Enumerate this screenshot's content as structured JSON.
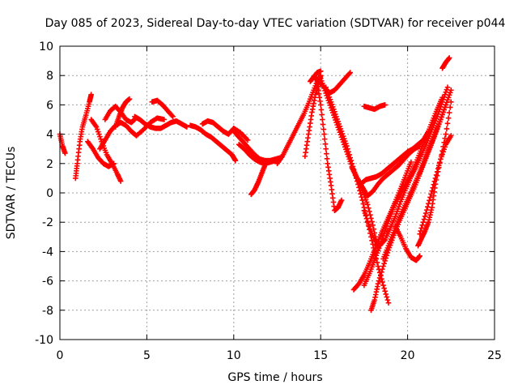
{
  "chart_data": {
    "type": "scatter",
    "title": "Day 085 of 2023, Sidereal Day-to-day VTEC variation (SDTVAR) for receiver p044",
    "xlabel": "GPS time / hours",
    "ylabel": "SDTVAR / TECUs",
    "xlim": [
      0,
      25
    ],
    "ylim": [
      -10,
      10
    ],
    "xticks": [
      0,
      5,
      10,
      15,
      20,
      25
    ],
    "yticks": [
      -10,
      -8,
      -6,
      -4,
      -2,
      0,
      2,
      4,
      6,
      8,
      10
    ],
    "grid": true,
    "marker": "+",
    "color": "#ff0000",
    "series": [
      {
        "x": [
          0.0,
          0.15,
          0.3
        ],
        "y": [
          4.0,
          3.2,
          2.7
        ]
      },
      {
        "x": [
          0.9,
          1.0,
          1.15,
          1.3,
          1.5,
          1.7,
          1.8
        ],
        "y": [
          1.0,
          2.0,
          3.5,
          4.5,
          5.3,
          6.2,
          6.7
        ]
      },
      {
        "x": [
          1.8,
          2.1,
          2.4,
          2.7,
          3.0,
          3.3,
          3.5
        ],
        "y": [
          5.0,
          4.5,
          3.5,
          2.6,
          2.0,
          1.3,
          0.8
        ]
      },
      {
        "x": [
          1.6,
          1.9,
          2.2,
          2.5,
          2.8,
          3.1
        ],
        "y": [
          3.5,
          3.0,
          2.4,
          2.0,
          1.8,
          2.0
        ]
      },
      {
        "x": [
          2.3,
          2.6,
          2.9,
          3.2,
          3.5,
          3.8,
          4.1,
          4.4,
          4.8,
          5.2,
          5.6,
          6.0
        ],
        "y": [
          3.0,
          3.6,
          4.2,
          4.6,
          4.8,
          4.6,
          4.2,
          3.9,
          4.3,
          4.8,
          5.1,
          5.0
        ]
      },
      {
        "x": [
          2.6,
          2.9,
          3.2,
          3.5,
          3.8,
          4.1,
          4.3
        ],
        "y": [
          5.0,
          5.6,
          5.9,
          5.5,
          5.0,
          4.8,
          5.0
        ]
      },
      {
        "x": [
          3.2,
          3.4,
          3.6,
          3.8,
          4.0
        ],
        "y": [
          4.5,
          5.2,
          5.8,
          6.2,
          6.4
        ]
      },
      {
        "x": [
          4.3,
          4.6,
          4.9,
          5.2,
          5.5,
          5.8,
          6.1,
          6.4,
          6.7,
          7.0,
          7.3
        ],
        "y": [
          5.2,
          5.0,
          4.7,
          4.5,
          4.4,
          4.4,
          4.6,
          4.8,
          4.9,
          4.7,
          4.5
        ]
      },
      {
        "x": [
          5.3,
          5.6,
          5.9,
          6.2,
          6.5
        ],
        "y": [
          6.2,
          6.3,
          6.0,
          5.6,
          5.2
        ]
      },
      {
        "x": [
          7.5,
          7.8,
          8.1,
          8.4,
          8.7,
          9.0,
          9.3,
          9.6,
          9.9,
          10.1
        ],
        "y": [
          4.6,
          4.5,
          4.3,
          4.0,
          3.8,
          3.5,
          3.2,
          2.9,
          2.6,
          2.2
        ]
      },
      {
        "x": [
          8.2,
          8.5,
          8.8,
          9.1,
          9.4,
          9.7,
          10.0,
          10.4,
          10.8
        ],
        "y": [
          4.7,
          4.9,
          4.8,
          4.5,
          4.2,
          4.0,
          4.4,
          4.1,
          3.6
        ]
      },
      {
        "x": [
          10.0,
          10.3,
          10.6,
          10.9,
          11.2,
          11.5,
          11.8,
          12.1,
          12.4,
          12.7
        ],
        "y": [
          4.2,
          3.8,
          3.4,
          3.0,
          2.6,
          2.3,
          2.2,
          2.2,
          2.3,
          2.4
        ]
      },
      {
        "x": [
          10.3,
          10.6,
          10.9,
          11.2,
          11.5,
          11.8,
          12.1,
          12.4
        ],
        "y": [
          3.3,
          3.0,
          2.6,
          2.3,
          2.1,
          2.0,
          2.1,
          2.2
        ]
      },
      {
        "x": [
          11.0,
          11.2,
          11.4,
          11.6,
          11.8
        ],
        "y": [
          -0.1,
          0.2,
          0.7,
          1.3,
          1.9
        ]
      },
      {
        "x": [
          12.5,
          12.8,
          13.1,
          13.4,
          13.7,
          14.0,
          14.3,
          14.6,
          14.9
        ],
        "y": [
          2.0,
          2.5,
          3.2,
          3.9,
          4.6,
          5.3,
          6.1,
          7.0,
          7.9
        ]
      },
      {
        "x": [
          14.1,
          14.3,
          14.5,
          14.7,
          14.9,
          15.0
        ],
        "y": [
          2.5,
          4.0,
          5.5,
          6.7,
          7.5,
          8.0
        ]
      },
      {
        "x": [
          14.4,
          14.6,
          14.8,
          15.0
        ],
        "y": [
          7.6,
          7.9,
          8.2,
          8.3
        ]
      },
      {
        "x": [
          14.6,
          14.9,
          15.2,
          15.5,
          15.8,
          16.1,
          16.4,
          16.7
        ],
        "y": [
          7.9,
          7.6,
          7.2,
          6.8,
          7.0,
          7.4,
          7.8,
          8.2
        ]
      },
      {
        "x": [
          14.8,
          15.0,
          15.2,
          15.4,
          15.6,
          15.8,
          16.0,
          16.2
        ],
        "y": [
          7.5,
          6.0,
          4.0,
          2.0,
          0.5,
          -1.2,
          -1.0,
          -0.5
        ]
      },
      {
        "x": [
          15.0,
          15.3,
          15.6,
          15.9,
          16.2,
          16.5,
          16.8,
          17.1,
          17.4,
          17.7,
          18.0,
          18.3
        ],
        "y": [
          7.8,
          6.8,
          5.8,
          4.8,
          3.8,
          2.8,
          1.8,
          1.0,
          0.2,
          -0.8,
          -2.2,
          -3.8
        ]
      },
      {
        "x": [
          15.3,
          15.6,
          15.9,
          16.2,
          16.5,
          16.8,
          17.1,
          17.4,
          17.7,
          18.0,
          18.3,
          18.6,
          18.9
        ],
        "y": [
          7.2,
          6.2,
          5.2,
          4.2,
          3.2,
          2.0,
          0.8,
          -0.5,
          -2.0,
          -3.5,
          -5.0,
          -6.3,
          -7.5
        ]
      },
      {
        "x": [
          16.8,
          17.1,
          17.4,
          17.7,
          18.0,
          18.3,
          18.6,
          18.9,
          19.2,
          19.5,
          19.8,
          20.1,
          20.4,
          20.7
        ],
        "y": [
          1.7,
          1.0,
          0.4,
          -0.2,
          0.1,
          0.6,
          1.0,
          1.3,
          1.6,
          1.9,
          2.3,
          2.7,
          3.0,
          3.2
        ]
      },
      {
        "x": [
          17.0,
          17.3,
          17.6,
          17.9,
          18.2,
          18.5,
          18.8,
          19.1,
          19.4,
          19.7,
          20.0,
          20.3,
          20.6,
          20.9,
          21.2
        ],
        "y": [
          1.2,
          0.6,
          0.9,
          1.0,
          1.1,
          1.3,
          1.6,
          1.9,
          2.2,
          2.5,
          2.8,
          3.0,
          3.3,
          3.6,
          4.2
        ]
      },
      {
        "x": [
          17.5,
          17.8,
          18.1,
          18.4,
          18.7,
          19.0,
          19.3,
          19.6,
          19.9,
          20.2,
          20.5,
          20.8,
          21.1,
          21.4,
          21.7,
          22.0,
          22.3
        ],
        "y": [
          -1.2,
          -2.3,
          -3.2,
          -3.6,
          -3.2,
          -2.4,
          -1.6,
          -0.6,
          0.3,
          1.1,
          1.8,
          2.6,
          3.4,
          4.3,
          5.2,
          6.2,
          7.2
        ]
      },
      {
        "x": [
          16.9,
          17.2,
          17.5,
          17.8,
          18.1,
          18.4,
          18.7,
          19.0,
          19.3,
          19.6,
          19.9,
          20.2
        ],
        "y": [
          -6.6,
          -6.2,
          -5.6,
          -4.8,
          -3.9,
          -3.0,
          -2.2,
          -1.4,
          -0.6,
          0.3,
          1.2,
          2.1
        ]
      },
      {
        "x": [
          17.5,
          17.8,
          18.1,
          18.4,
          18.7,
          19.0,
          19.3,
          19.6,
          19.9,
          20.2,
          20.5,
          20.8,
          21.1,
          21.4,
          21.7,
          22.0
        ],
        "y": [
          -6.3,
          -5.5,
          -4.6,
          -3.6,
          -2.6,
          -1.6,
          -0.7,
          0.0,
          0.6,
          1.3,
          2.1,
          3.0,
          3.9,
          4.8,
          5.7,
          6.5
        ]
      },
      {
        "x": [
          17.9,
          18.1,
          18.3,
          18.6,
          18.9,
          19.2,
          19.5,
          19.8,
          20.1,
          20.4,
          20.7,
          21.0,
          21.3,
          21.6,
          21.9,
          22.2
        ],
        "y": [
          -8.0,
          -7.3,
          -6.2,
          -5.0,
          -3.9,
          -2.9,
          -2.0,
          -1.2,
          -0.4,
          0.4,
          1.3,
          2.2,
          3.1,
          4.0,
          5.0,
          6.0
        ]
      },
      {
        "x": [
          18.6,
          18.9,
          19.2,
          19.5,
          19.8,
          20.1,
          20.4,
          20.7,
          21.0,
          21.3,
          21.6,
          21.9,
          22.2,
          22.5
        ],
        "y": [
          -4.5,
          -3.6,
          -2.7,
          -1.8,
          -1.0,
          -0.2,
          0.6,
          1.4,
          2.3,
          3.2,
          4.1,
          5.0,
          6.0,
          7.0
        ]
      },
      {
        "x": [
          19.3,
          19.6,
          19.9,
          20.2,
          20.5,
          20.7
        ],
        "y": [
          -2.3,
          -3.0,
          -3.8,
          -4.4,
          -4.6,
          -4.3
        ]
      },
      {
        "x": [
          20.7,
          21.0,
          21.3,
          21.6,
          21.9,
          22.2,
          22.5
        ],
        "y": [
          -2.8,
          -1.6,
          -0.3,
          1.0,
          2.3,
          3.3,
          3.9
        ]
      },
      {
        "x": [
          20.6,
          20.8,
          21.0,
          21.2,
          21.4,
          21.6,
          21.9,
          22.2,
          22.5
        ],
        "y": [
          -3.6,
          -3.1,
          -2.6,
          -2.0,
          -1.0,
          0.6,
          2.3,
          4.0,
          6.2
        ]
      },
      {
        "x": [
          17.5,
          17.8,
          18.1,
          18.4,
          18.7
        ],
        "y": [
          5.9,
          5.8,
          5.7,
          5.9,
          6.0
        ]
      },
      {
        "x": [
          22.0,
          22.2,
          22.4
        ],
        "y": [
          8.5,
          8.9,
          9.2
        ]
      }
    ]
  }
}
